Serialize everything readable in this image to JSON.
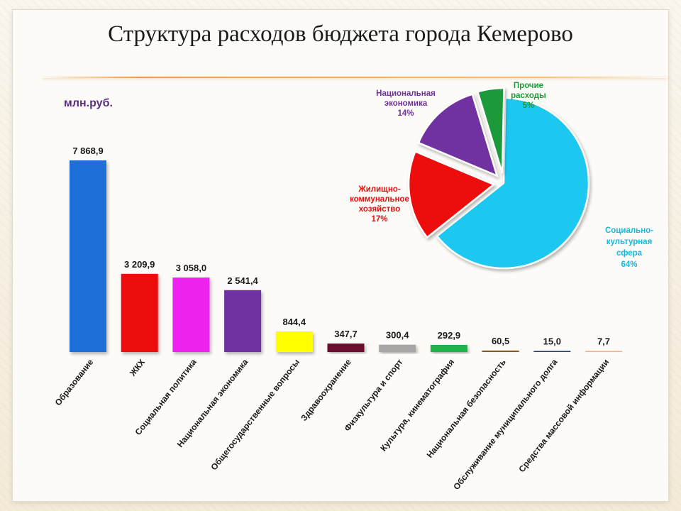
{
  "title": "Структура расходов бюджета города Кемерово",
  "unit_label": "млн.руб.",
  "chart_data": [
    {
      "type": "bar",
      "unit": "млн.руб.",
      "ylim": [
        0,
        7868.9
      ],
      "categories": [
        "Образование",
        "ЖКХ",
        "Социальная политика",
        "Национальная экономика",
        "Общегосударственные вопросы",
        "Здравоохранение",
        "Физкультура и спорт",
        "Культура, кинематография",
        "Национальная безопасность",
        "Обслуживание муниципального долга",
        "Средства массовой информации"
      ],
      "values": [
        7868.9,
        3209.9,
        3058.0,
        2541.4,
        844.4,
        347.7,
        300.4,
        292.9,
        60.5,
        15.0,
        7.7
      ],
      "value_labels": [
        "7 868,9",
        "3 209,9",
        "3 058,0",
        "2 541,4",
        "844,4",
        "347,7",
        "300,4",
        "292,9",
        "60,5",
        "15,0",
        "7,7"
      ],
      "colors": [
        "#1f6fd8",
        "#ee1111",
        "#ee22ee",
        "#7030a0",
        "#ffff00",
        "#6b0d2e",
        "#a6a6a6",
        "#22b14c",
        "#8b5a1a",
        "#1f3c6e",
        "#f4b183"
      ]
    },
    {
      "type": "pie",
      "slices": [
        {
          "label": [
            "Социально-",
            "культурная",
            "сфера"
          ],
          "value": 64,
          "pct_label": "64%",
          "color": "#1ec8f0",
          "text_color": "#19b6e0"
        },
        {
          "label": [
            "Жилищно-",
            "коммунальное",
            "хозяйство"
          ],
          "value": 17,
          "pct_label": "17%",
          "color": "#ee1111",
          "text_color": "#e01010"
        },
        {
          "label": [
            "Национальная",
            "экономика"
          ],
          "value": 14,
          "pct_label": "14%",
          "color": "#7030a0",
          "text_color": "#7030a0"
        },
        {
          "label": [
            "Прочие",
            "расходы"
          ],
          "value": 5,
          "pct_label": "5%",
          "color": "#1a9a3a",
          "text_color": "#1a9a3a"
        }
      ]
    }
  ]
}
